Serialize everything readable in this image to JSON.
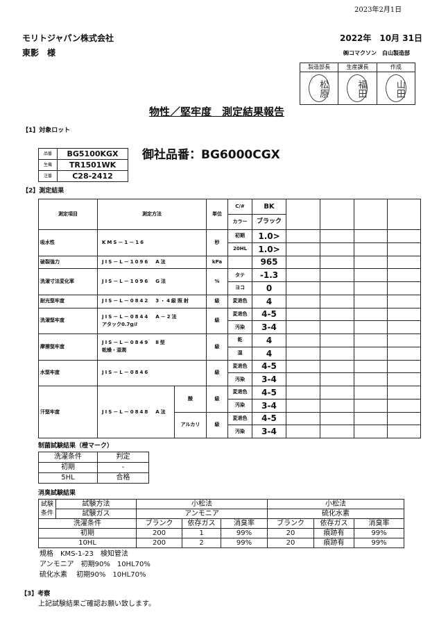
{
  "print_date": "2023年2月1日",
  "recipient": {
    "company": "モリトジャパン株式会社",
    "person": "東影　様"
  },
  "report_date": "2022年　10月 31日",
  "issuer": "㈱コマクソン　白山製造部",
  "approvals": [
    {
      "role": "製造部長",
      "seal": "松原"
    },
    {
      "role": "生産課長",
      "seal": "福田"
    },
    {
      "role": "作成",
      "seal": "山田"
    }
  ],
  "title": "物性／堅牢度　測定結果報告",
  "section1": {
    "heading": "【1】対象ロット",
    "lot": [
      {
        "label": "品番",
        "value": "BG5100KGX"
      },
      {
        "label": "生機",
        "value": "TR1501WK"
      },
      {
        "label": "注番",
        "value": "C28-2412"
      }
    ],
    "customer_part": "御社品番：BG6000CGX"
  },
  "section2": {
    "heading": "【2】測定結果",
    "header": {
      "item": "測定項目",
      "method": "測定方法",
      "unit": "単位",
      "cno": "C/#",
      "color_label": "カラー",
      "code": "BK",
      "color": "ブラック"
    },
    "items": [
      {
        "name": "吸水性",
        "method": "KMS－1－16",
        "note": "",
        "unit": "秒",
        "rows": [
          {
            "sub": "初期",
            "value": "1.0>"
          },
          {
            "sub": "20HL",
            "value": "1.0>"
          }
        ]
      },
      {
        "name": "破裂強力",
        "method": "JIS－L－1096　A法",
        "note": "",
        "unit": "kPa",
        "rows": [
          {
            "sub": "",
            "value": "965"
          }
        ]
      },
      {
        "name": "洗濯寸法変化率",
        "method": "JIS－L－1096　G法",
        "note": "",
        "unit": "%",
        "rows": [
          {
            "sub": "タテ",
            "value": "-1.3"
          },
          {
            "sub": "ヨコ",
            "value": "0"
          }
        ]
      },
      {
        "name": "耐光堅牢度",
        "method": "JIS－L－0842　3・4級照射",
        "note": "",
        "unit": "級",
        "rows": [
          {
            "sub": "変退色",
            "value": "4"
          }
        ]
      },
      {
        "name": "洗濯堅牢度",
        "method": "JIS－L－0844　A－2法",
        "note": "アタック0.7g/ℓ",
        "unit": "級",
        "rows": [
          {
            "sub": "変退色",
            "value": "4-5"
          },
          {
            "sub": "汚染",
            "value": "3-4"
          }
        ]
      },
      {
        "name": "摩擦堅牢度",
        "method": "JIS－L－0849　Ⅱ型",
        "note": "乾燥・湿潤",
        "unit": "級",
        "rows": [
          {
            "sub": "乾",
            "value": "4"
          },
          {
            "sub": "湿",
            "value": "4"
          }
        ]
      },
      {
        "name": "水堅牢度",
        "method": "JIS－L－0846",
        "note": "",
        "unit": "級",
        "rows": [
          {
            "sub": "変退色",
            "value": "4-5"
          },
          {
            "sub": "汚染",
            "value": "3-4"
          }
        ]
      }
    ],
    "sweat": {
      "name": "汗堅牢度",
      "method": "JIS－L－0848　A法",
      "groups": [
        {
          "type": "酸",
          "unit": "級",
          "rows": [
            {
              "sub": "変退色",
              "value": "4-5"
            },
            {
              "sub": "汚染",
              "value": "3-4"
            }
          ]
        },
        {
          "type": "アルカリ",
          "unit": "級",
          "rows": [
            {
              "sub": "変退色",
              "value": "4-5"
            },
            {
              "sub": "汚染",
              "value": "3-4"
            }
          ]
        }
      ]
    }
  },
  "antibacterial": {
    "title": "制菌試験結果（橙マーク）",
    "header": [
      "洗濯条件",
      "判定"
    ],
    "rows": [
      [
        "初期",
        "-"
      ],
      [
        "5HL",
        "合格"
      ]
    ]
  },
  "deodorant": {
    "title": "消臭試験結果",
    "cond_label": "試験条件",
    "method_label": "試験方法",
    "gas_label": "試験ガス",
    "wash_label": "洗濯条件",
    "tests": [
      {
        "method": "小松法",
        "gas": "アンモニア",
        "cols": [
          "ブランク",
          "依存ガス",
          "消臭率"
        ]
      },
      {
        "method": "小松法",
        "gas": "硫化水素",
        "cols": [
          "ブランク",
          "依存ガス",
          "消臭率"
        ]
      }
    ],
    "rows": [
      {
        "wash": "初期",
        "values": [
          "200",
          "1",
          "99%",
          "20",
          "痕跡有",
          "99%"
        ]
      },
      {
        "wash": "10HL",
        "values": [
          "200",
          "2",
          "99%",
          "20",
          "痕跡有",
          "99%"
        ]
      }
    ],
    "notes": [
      "規格　KMS-1-23　検知管法",
      "アンモニア　初期90%　10HL70%",
      "硫化水素　 初期90%　10HL70%"
    ]
  },
  "section3": {
    "heading": "【3】考察",
    "text": "上記試験結果ご確認お願い致します。"
  }
}
